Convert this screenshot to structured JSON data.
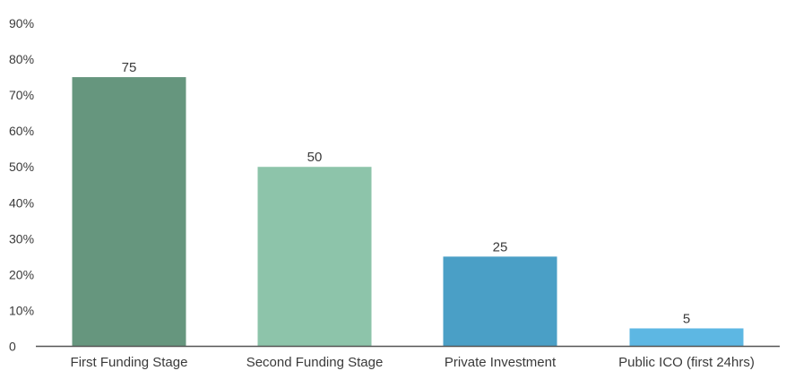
{
  "chart_data": {
    "type": "bar",
    "categories": [
      "First Funding Stage",
      "Second Funding Stage",
      "Private Investment",
      "Public ICO (first 24hrs)"
    ],
    "values": [
      75,
      50,
      25,
      5
    ],
    "data_labels": [
      "75",
      "50",
      "25",
      "5"
    ],
    "colors": [
      "#66967e",
      "#8dc4aa",
      "#4a9fc6",
      "#5db7e3"
    ],
    "title": "",
    "xlabel": "",
    "ylabel": "",
    "ylim": [
      0,
      90
    ],
    "yticks": [
      0,
      10,
      20,
      30,
      40,
      50,
      60,
      70,
      80,
      90
    ],
    "ytick_labels": [
      "0",
      "10%",
      "20%",
      "30%",
      "40%",
      "50%",
      "60%",
      "70%",
      "80%",
      "90%"
    ],
    "grid": false,
    "legend": "none"
  }
}
